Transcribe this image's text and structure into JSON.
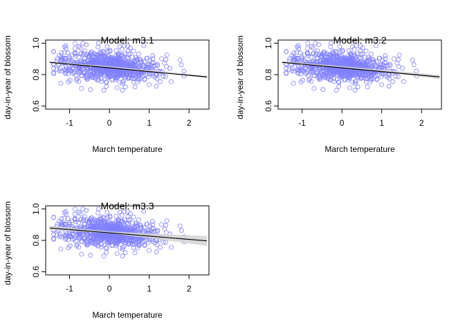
{
  "chart_data": [
    {
      "type": "scatter",
      "title": "Model: m3.1",
      "xlabel": "March temperature",
      "ylabel": "day-in-year of blossom",
      "xlim": [
        -1.6,
        2.5
      ],
      "ylim": [
        0.58,
        1.02
      ],
      "xticks": [
        -1,
        0,
        1,
        2
      ],
      "yticks": [
        0.6,
        0.8,
        1.0
      ],
      "ytick_labels": [
        "0.6",
        "0.8",
        "1.0"
      ],
      "xtick_labels": [
        "-1",
        "0",
        "1",
        "2"
      ],
      "point_color": "#8080ff",
      "line_color": "#000000",
      "band_color": "#d3d3d3",
      "line": {
        "x": [
          -1.5,
          2.45
        ],
        "y": [
          0.878,
          0.785
        ]
      },
      "band": {
        "x": [
          -1.5,
          0.0,
          2.45
        ],
        "lower": [
          0.874,
          0.848,
          0.778
        ],
        "upper": [
          0.882,
          0.854,
          0.792
        ]
      },
      "points": {
        "seed": 1,
        "n": 800,
        "x_mean": 0.0,
        "x_sd": 0.6,
        "y_sd": 0.048,
        "y_intercept": 0.851,
        "slope": -0.0235,
        "y_range": [
          0.7,
          1.0
        ]
      }
    },
    {
      "type": "scatter",
      "title": "Model: m3.2",
      "xlabel": "March temperature",
      "ylabel": "day-in-year of blossom",
      "xlim": [
        -1.6,
        2.5
      ],
      "ylim": [
        0.58,
        1.02
      ],
      "xticks": [
        -1,
        0,
        1,
        2
      ],
      "yticks": [
        0.6,
        0.8,
        1.0
      ],
      "ytick_labels": [
        "0.6",
        "0.8",
        "1.0"
      ],
      "xtick_labels": [
        "-1",
        "0",
        "1",
        "2"
      ],
      "point_color": "#8080ff",
      "line_color": "#000000",
      "band_color": "#d3d3d3",
      "line": {
        "x": [
          -1.5,
          2.45
        ],
        "y": [
          0.878,
          0.785
        ]
      },
      "band": {
        "x": [
          -1.5,
          0.0,
          2.45
        ],
        "lower": [
          0.872,
          0.848,
          0.772
        ],
        "upper": [
          0.884,
          0.854,
          0.798
        ]
      },
      "points": {
        "seed": 1,
        "n": 800,
        "x_mean": 0.0,
        "x_sd": 0.6,
        "y_sd": 0.048,
        "y_intercept": 0.851,
        "slope": -0.0235,
        "y_range": [
          0.7,
          1.0
        ]
      }
    },
    {
      "type": "scatter",
      "title": "Model: m3.3",
      "xlabel": "March temperature",
      "ylabel": "day-in-year of blossom",
      "xlim": [
        -1.6,
        2.5
      ],
      "ylim": [
        0.58,
        1.02
      ],
      "xticks": [
        -1,
        0,
        1,
        2
      ],
      "yticks": [
        0.6,
        0.8,
        1.0
      ],
      "ytick_labels": [
        "0.6",
        "0.8",
        "1.0"
      ],
      "xtick_labels": [
        "-1",
        "0",
        "1",
        "2"
      ],
      "point_color": "#8080ff",
      "line_color": "#000000",
      "band_color": "#d3d3d3",
      "line": {
        "x": [
          -1.5,
          2.45
        ],
        "y": [
          0.879,
          0.797
        ]
      },
      "band": {
        "x": [
          -1.5,
          0.0,
          2.45
        ],
        "lower": [
          0.864,
          0.846,
          0.765
        ],
        "upper": [
          0.894,
          0.857,
          0.827
        ]
      },
      "points": {
        "seed": 1,
        "n": 800,
        "x_mean": 0.0,
        "x_sd": 0.6,
        "y_sd": 0.048,
        "y_intercept": 0.851,
        "slope": -0.0235,
        "y_range": [
          0.7,
          1.0
        ]
      }
    }
  ]
}
